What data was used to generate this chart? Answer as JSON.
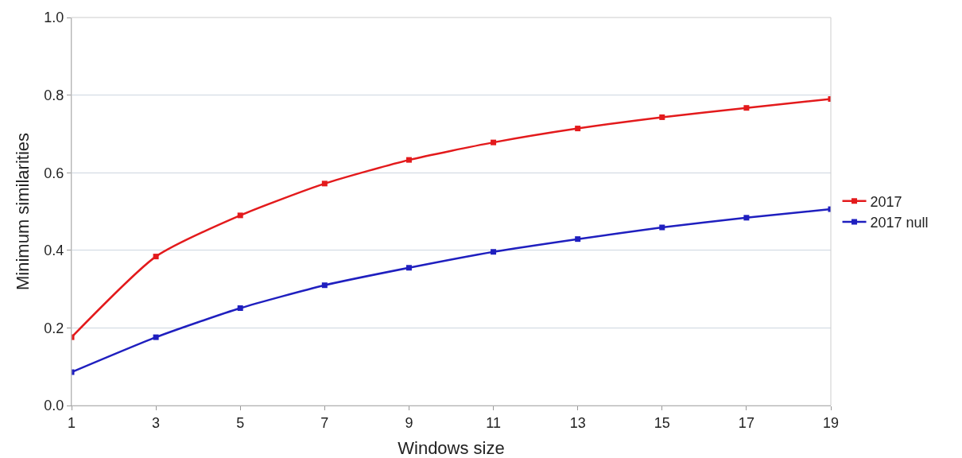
{
  "chart_data": {
    "type": "line",
    "xlabel": "Windows size",
    "ylabel": "Minimum similarities",
    "x": [
      1,
      3,
      5,
      7,
      9,
      11,
      13,
      15,
      17,
      19
    ],
    "series": [
      {
        "name": "2017",
        "color": "#e31a1c",
        "values": [
          0.176,
          0.384,
          0.49,
          0.572,
          0.633,
          0.678,
          0.714,
          0.743,
          0.767,
          0.79
        ]
      },
      {
        "name": "2017 null",
        "color": "#1f1fbf",
        "values": [
          0.086,
          0.176,
          0.251,
          0.31,
          0.355,
          0.396,
          0.429,
          0.459,
          0.484,
          0.506
        ]
      }
    ],
    "xlim": [
      1,
      19
    ],
    "xticks": [
      1,
      3,
      5,
      7,
      9,
      11,
      13,
      15,
      17,
      19
    ],
    "ylim": [
      0,
      1
    ],
    "yticks": [
      {
        "value": 0,
        "label": "0.0"
      },
      {
        "value": 0.2,
        "label": "0.2"
      },
      {
        "value": 0.4,
        "label": "0.4"
      },
      {
        "value": 0.6,
        "label": "0.6"
      },
      {
        "value": 0.8,
        "label": "0.8"
      },
      {
        "value": 1,
        "label": "1.0"
      }
    ],
    "grid": "y",
    "legend": "right",
    "marker": "square",
    "line_style": "solid"
  }
}
